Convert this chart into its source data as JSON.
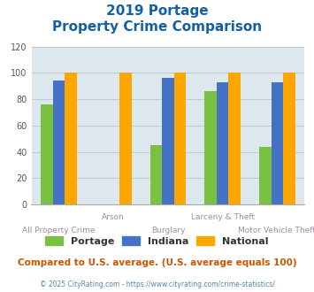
{
  "title_line1": "2019 Portage",
  "title_line2": "Property Crime Comparison",
  "categories": [
    "All Property Crime",
    "Arson",
    "Burglary",
    "Larceny & Theft",
    "Motor Vehicle Theft"
  ],
  "x_labels_top": [
    "",
    "Arson",
    "",
    "Larceny & Theft",
    ""
  ],
  "x_labels_bottom": [
    "All Property Crime",
    "",
    "Burglary",
    "",
    "Motor Vehicle Theft"
  ],
  "portage": [
    76,
    0,
    45,
    86,
    44
  ],
  "indiana": [
    94,
    0,
    96,
    93,
    93
  ],
  "national": [
    100,
    100,
    100,
    100,
    100
  ],
  "portage_color": "#7AC143",
  "indiana_color": "#4472C4",
  "national_color": "#FFA500",
  "bg_color": "#DDE8EE",
  "ylim": [
    0,
    120
  ],
  "yticks": [
    0,
    20,
    40,
    60,
    80,
    100,
    120
  ],
  "bar_width": 0.22,
  "title_color": "#1560A0",
  "xlabel_color": "#9B8EA0",
  "footer_text": "Compared to U.S. average. (U.S. average equals 100)",
  "footer_color": "#CC5500",
  "credit_text": "© 2025 CityRating.com - https://www.cityrating.com/crime-statistics/",
  "credit_color": "#5588AA",
  "legend_labels": [
    "Portage",
    "Indiana",
    "National"
  ],
  "legend_text_color": "#333333",
  "grid_color": "#BBCCCC"
}
